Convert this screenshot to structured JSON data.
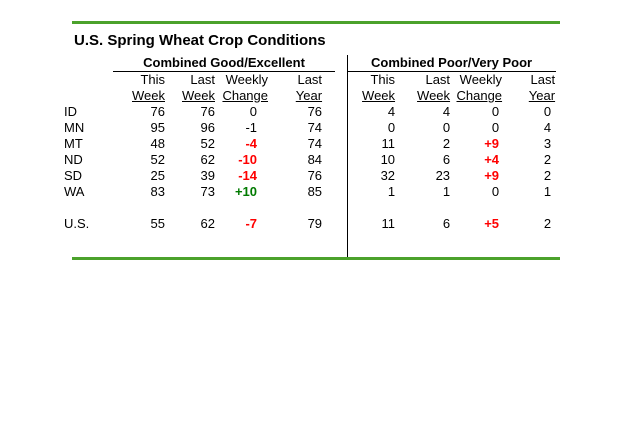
{
  "title": "U.S. Spring Wheat Crop Conditions",
  "colors": {
    "accent_green_rule": "#4ba22b",
    "negative_change": "#ff0000",
    "positive_change": "#007a00"
  },
  "sections": {
    "good_excellent": {
      "label": "Combined Good/Excellent"
    },
    "poor_very_poor": {
      "label": "Combined Poor/Very Poor"
    }
  },
  "column_headers": {
    "this_top": "This",
    "this_bottom": "Week",
    "last_top": "Last",
    "last_bottom": "Week",
    "weekly_top": "Weekly",
    "weekly_bottom": "Change",
    "year_top": "Last",
    "year_bottom": "Year"
  },
  "rows": [
    {
      "state": "ID",
      "ge": {
        "this": "76",
        "last": "76",
        "change": "0",
        "change_tone": "none",
        "year": "76"
      },
      "pvp": {
        "this": "4",
        "last": "4",
        "change": "0",
        "change_tone": "none",
        "year": "0"
      }
    },
    {
      "state": "MN",
      "ge": {
        "this": "95",
        "last": "96",
        "change": "-1",
        "change_tone": "none",
        "year": "74"
      },
      "pvp": {
        "this": "0",
        "last": "0",
        "change": "0",
        "change_tone": "none",
        "year": "4"
      }
    },
    {
      "state": "MT",
      "ge": {
        "this": "48",
        "last": "52",
        "change": "-4",
        "change_tone": "neg",
        "year": "74"
      },
      "pvp": {
        "this": "11",
        "last": "2",
        "change": "+9",
        "change_tone": "neg",
        "year": "3"
      }
    },
    {
      "state": "ND",
      "ge": {
        "this": "52",
        "last": "62",
        "change": "-10",
        "change_tone": "neg",
        "year": "84"
      },
      "pvp": {
        "this": "10",
        "last": "6",
        "change": "+4",
        "change_tone": "neg",
        "year": "2"
      }
    },
    {
      "state": "SD",
      "ge": {
        "this": "25",
        "last": "39",
        "change": "-14",
        "change_tone": "neg",
        "year": "76"
      },
      "pvp": {
        "this": "32",
        "last": "23",
        "change": "+9",
        "change_tone": "neg",
        "year": "2"
      }
    },
    {
      "state": "WA",
      "ge": {
        "this": "83",
        "last": "73",
        "change": "+10",
        "change_tone": "pos",
        "year": "85"
      },
      "pvp": {
        "this": "1",
        "last": "1",
        "change": "0",
        "change_tone": "none",
        "year": "1"
      }
    }
  ],
  "us_row": {
    "state": "U.S.",
    "ge": {
      "this": "55",
      "last": "62",
      "change": "-7",
      "change_tone": "neg",
      "year": "79"
    },
    "pvp": {
      "this": "11",
      "last": "6",
      "change": "+5",
      "change_tone": "neg",
      "year": "2"
    }
  }
}
